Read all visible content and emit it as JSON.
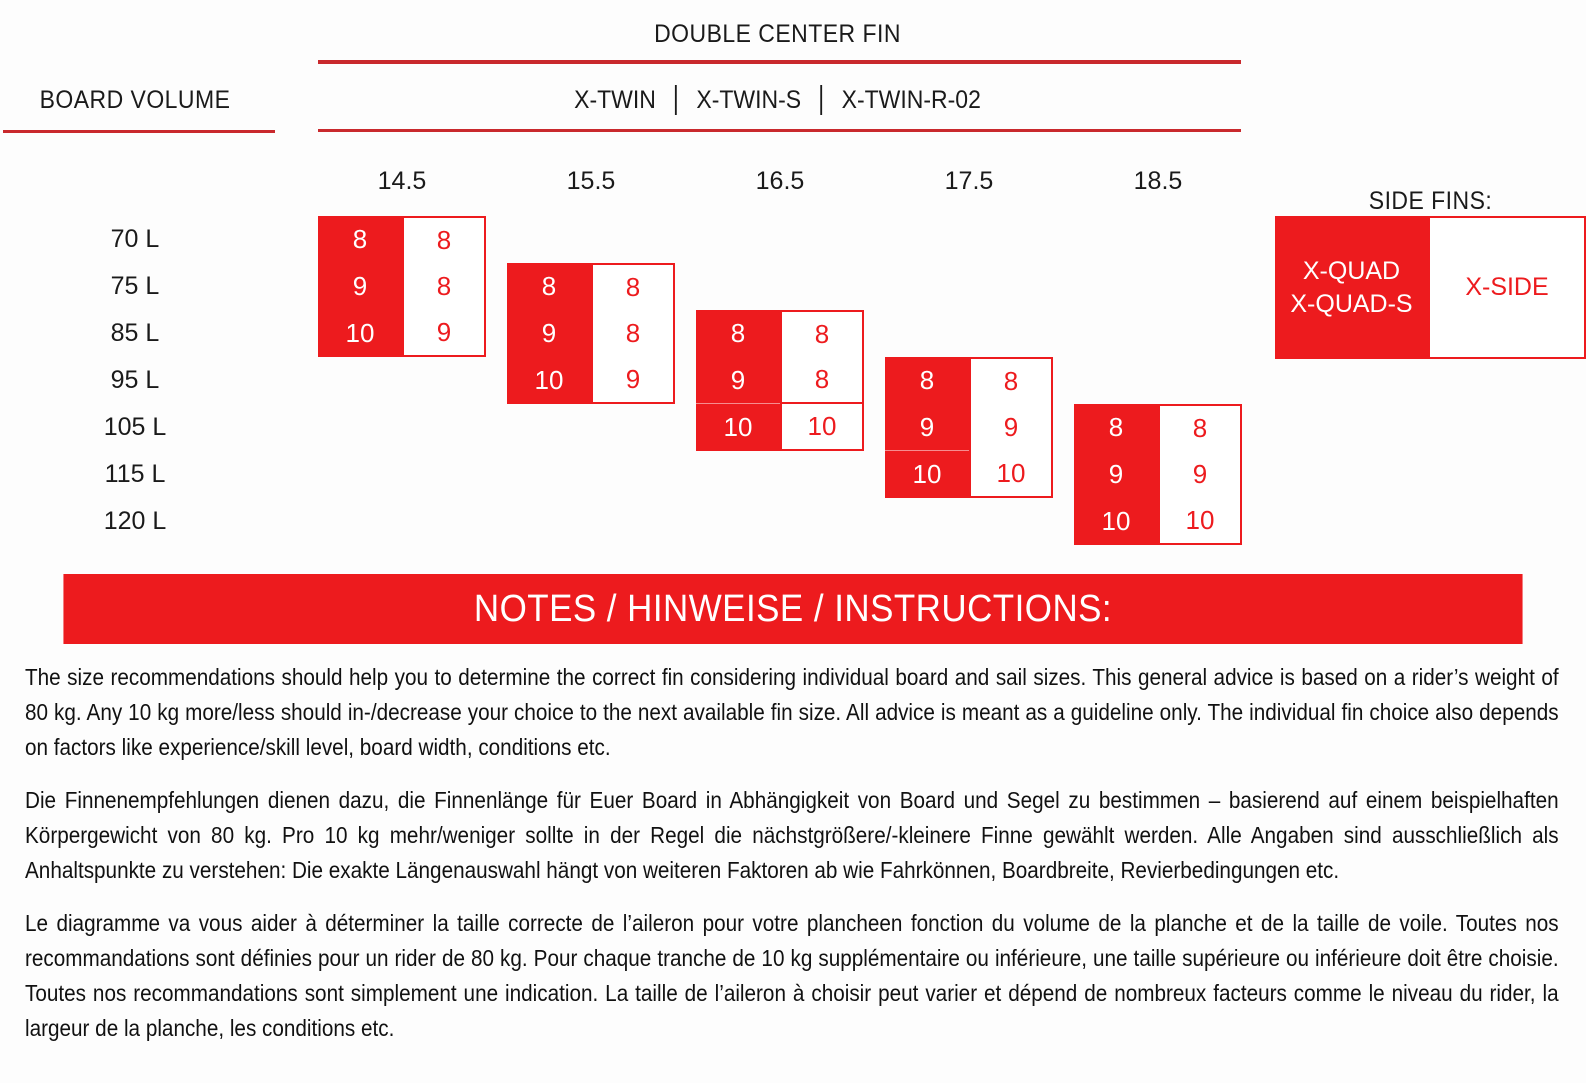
{
  "chart_data": {
    "type": "table",
    "title": "DOUBLE CENTER FIN",
    "row_header": "BOARD VOLUME",
    "board_volumes": [
      "70 L",
      "75 L",
      "85 L",
      "95 L",
      "105 L",
      "115 L",
      "120 L"
    ],
    "sail_sizes": [
      "14.5",
      "15.5",
      "16.5",
      "17.5",
      "18.5"
    ],
    "fin_models": [
      "X-TWIN",
      "X-TWIN-S",
      "X-TWIN-R-02"
    ],
    "blocks": [
      {
        "sail_size": "14.5",
        "col_index": 0,
        "row_index": 0,
        "start_volume": "70 L",
        "red_values": [
          8,
          9,
          10
        ],
        "white_values": [
          8,
          8,
          9
        ],
        "seam": "none"
      },
      {
        "sail_size": "15.5",
        "col_index": 1,
        "row_index": 1,
        "start_volume": "75 L",
        "red_values": [
          8,
          9,
          10
        ],
        "white_values": [
          8,
          8,
          9
        ],
        "seam": "none"
      },
      {
        "sail_size": "16.5",
        "col_index": 2,
        "row_index": 2,
        "start_volume": "85 L",
        "red_values": [
          8,
          9,
          10
        ],
        "white_values": [
          8,
          8,
          10
        ],
        "seam": "full"
      },
      {
        "sail_size": "17.5",
        "col_index": 3,
        "row_index": 3,
        "start_volume": "95 L",
        "red_values": [
          8,
          9,
          10
        ],
        "white_values": [
          8,
          9,
          10
        ],
        "seam": "red"
      },
      {
        "sail_size": "18.5",
        "col_index": 4,
        "row_index": 4,
        "start_volume": "105 L",
        "red_values": [
          8,
          9,
          10
        ],
        "white_values": [
          8,
          9,
          10
        ],
        "seam": "none"
      }
    ],
    "side_fins": {
      "label": "SIDE FINS:",
      "red_cell": [
        "X-QUAD",
        "X-QUAD-S"
      ],
      "white_cell": "X-SIDE"
    }
  },
  "notes": {
    "banner": "NOTES / HINWEISE / INSTRUCTIONS:",
    "paragraphs": [
      "The size recommendations should help you to determine the correct fin considering individual board and sail sizes. This general advice is based on a rider’s weight of 80 kg. Any 10 kg more/less should in-/decrease your choice to the next available fin size. All advice is meant as a guideline only. The individual fin choice also depends on factors like experience/skill level, board width, conditions etc.",
      "Die Finnenempfehlungen dienen dazu, die Finnenlänge für Euer Board in Abhängigkeit von Board und Segel zu bestimmen – basierend auf einem beispielhaften Körpergewicht von 80 kg. Pro 10 kg mehr/weniger sollte in der Regel die nächstgrößere/-kleinere Finne gewählt werden. Alle Angaben sind ausschließlich als Anhaltspunkte zu verstehen: Die exakte Längenauswahl hängt von weiteren Faktoren ab wie Fahrkönnen, Boardbreite, Revierbedingungen etc.",
      "Le diagramme va vous aider à déterminer la taille correcte de l’aileron pour votre plancheen fonction du volume de la planche et de la taille de voile. Toutes nos recommandations sont définies pour un rider de 80 kg. Pour chaque tranche de 10 kg supplémentaire ou inférieure, une taille supérieure ou inférieure doit être choisie. Toutes nos recommandations sont simplement une indication. La taille de l’aileron à choisir peut varier et dépend de nombreux facteurs comme le niveau du rider, la largeur de la planche, les conditions etc."
    ]
  },
  "colors": {
    "red": "#ED1B1E",
    "rule_red": "#C9292D",
    "text": "#1A1A1A"
  }
}
